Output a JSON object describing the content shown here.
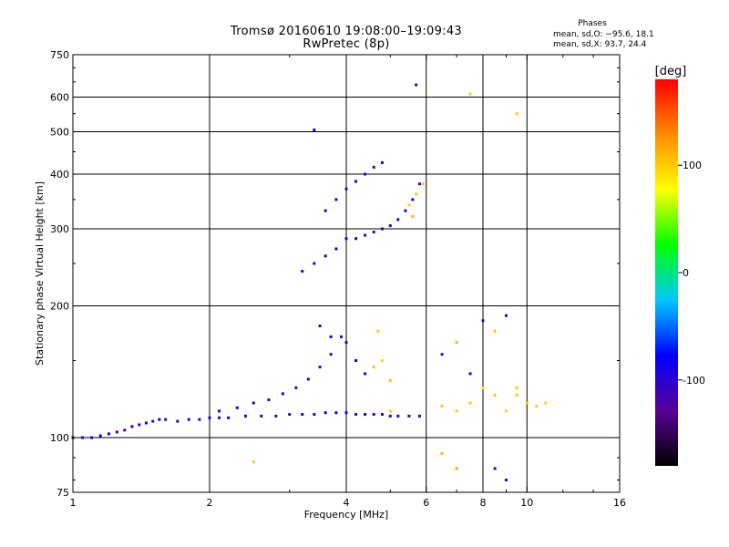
{
  "chart_data": {
    "type": "scatter",
    "title": "Tromsø 20160610 19:08:00–19:09:43",
    "subtitle": "RwPretec (8p)",
    "xlabel": "Frequency [MHz]",
    "ylabel": "Stationary phase Virtual Height [km]",
    "x_scale": "log",
    "y_scale": "log",
    "xlim": [
      1,
      16
    ],
    "ylim": [
      75,
      750
    ],
    "x_ticks": [
      1,
      2,
      4,
      6,
      8,
      10,
      16
    ],
    "y_ticks": [
      75,
      100,
      200,
      300,
      400,
      500,
      600,
      750
    ],
    "grid": true,
    "colorbar": {
      "label": "[deg]",
      "range": [
        -180,
        180
      ],
      "ticks": [
        -100,
        0,
        100
      ],
      "colormap": [
        "#000000",
        "#5a0096",
        "#0000ff",
        "#00c8ff",
        "#00ff00",
        "#ffff00",
        "#ff8c00",
        "#ff0000"
      ]
    },
    "stats": {
      "heading": "Phases",
      "o_line": "mean, sd,O: −95.6, 18.1",
      "x_line": "mean, sd,X:  93.7, 24.4"
    },
    "series": [
      {
        "values": [
          [
            1.0,
            100,
            -95
          ],
          [
            1.05,
            100,
            -100
          ],
          [
            1.1,
            100,
            -90
          ],
          [
            1.15,
            101,
            -100
          ],
          [
            1.2,
            102,
            -95
          ],
          [
            1.25,
            103,
            -100
          ],
          [
            1.3,
            104,
            -110
          ],
          [
            1.35,
            106,
            -95
          ],
          [
            1.4,
            107,
            -100
          ],
          [
            1.45,
            108,
            -90
          ],
          [
            1.5,
            109,
            -105
          ],
          [
            1.55,
            110,
            -95
          ],
          [
            1.6,
            110,
            -100
          ],
          [
            1.7,
            109,
            -95
          ],
          [
            1.8,
            110,
            -100
          ],
          [
            1.9,
            110,
            -105
          ],
          [
            2.0,
            111,
            -95
          ],
          [
            2.1,
            111,
            -100
          ],
          [
            2.2,
            111,
            -90
          ],
          [
            2.4,
            112,
            -100
          ],
          [
            2.6,
            112,
            -95
          ],
          [
            2.8,
            112,
            -100
          ],
          [
            3.0,
            113,
            -105
          ],
          [
            3.2,
            113,
            -95
          ],
          [
            3.4,
            113,
            -100
          ],
          [
            3.6,
            114,
            -95
          ],
          [
            3.8,
            114,
            -100
          ],
          [
            4.0,
            114,
            -90
          ],
          [
            4.2,
            113,
            -100
          ],
          [
            4.4,
            113,
            -95
          ],
          [
            4.6,
            113,
            -100
          ],
          [
            4.8,
            113,
            -105
          ],
          [
            5.0,
            112,
            -95
          ],
          [
            5.2,
            112,
            -100
          ],
          [
            5.5,
            112,
            -95
          ],
          [
            5.8,
            112,
            -100
          ],
          [
            2.1,
            115,
            -100
          ],
          [
            2.3,
            117,
            -95
          ],
          [
            2.5,
            120,
            -100
          ],
          [
            2.7,
            122,
            -90
          ],
          [
            2.9,
            126,
            -100
          ],
          [
            3.1,
            130,
            -95
          ],
          [
            3.3,
            136,
            -100
          ],
          [
            3.5,
            145,
            -95
          ],
          [
            3.7,
            155,
            -100
          ],
          [
            3.9,
            170,
            -105
          ],
          [
            3.2,
            240,
            -100
          ],
          [
            3.4,
            250,
            -95
          ],
          [
            3.6,
            260,
            -100
          ],
          [
            3.8,
            270,
            -90
          ],
          [
            4.0,
            285,
            -100
          ],
          [
            4.2,
            285,
            -95
          ],
          [
            4.4,
            290,
            -100
          ],
          [
            4.6,
            295,
            -105
          ],
          [
            4.8,
            300,
            -95
          ],
          [
            5.0,
            305,
            -100
          ],
          [
            5.2,
            315,
            -95
          ],
          [
            5.4,
            330,
            -100
          ],
          [
            5.6,
            350,
            -90
          ],
          [
            5.8,
            380,
            -100
          ],
          [
            3.6,
            330,
            -100
          ],
          [
            3.8,
            350,
            -95
          ],
          [
            4.0,
            370,
            -100
          ],
          [
            4.2,
            385,
            -90
          ],
          [
            4.4,
            400,
            -100
          ],
          [
            4.6,
            415,
            -95
          ],
          [
            4.8,
            425,
            -100
          ],
          [
            3.4,
            505,
            -100
          ],
          [
            3.5,
            180,
            -100
          ],
          [
            3.7,
            170,
            -95
          ],
          [
            4.0,
            165,
            -100
          ],
          [
            4.2,
            150,
            -90
          ],
          [
            4.4,
            140,
            -100
          ],
          [
            4.6,
            145,
            100
          ],
          [
            4.8,
            150,
            95
          ],
          [
            5.0,
            135,
            105
          ],
          [
            4.7,
            175,
            100
          ],
          [
            5.0,
            115,
            100
          ],
          [
            5.5,
            340,
            95
          ],
          [
            5.7,
            360,
            100
          ],
          [
            5.9,
            380,
            105
          ],
          [
            5.6,
            320,
            110
          ],
          [
            6.5,
            118,
            100
          ],
          [
            7.0,
            115,
            95
          ],
          [
            7.5,
            120,
            100
          ],
          [
            8.0,
            130,
            90
          ],
          [
            8.5,
            125,
            100
          ],
          [
            9.0,
            115,
            95
          ],
          [
            9.5,
            125,
            100
          ],
          [
            10.0,
            120,
            105
          ],
          [
            10.5,
            118,
            100
          ],
          [
            11.0,
            120,
            95
          ],
          [
            6.5,
            155,
            -110
          ],
          [
            7.0,
            165,
            110
          ],
          [
            7.5,
            140,
            -100
          ],
          [
            8.0,
            185,
            -95
          ],
          [
            8.5,
            175,
            100
          ],
          [
            9.0,
            190,
            -100
          ],
          [
            9.5,
            130,
            100
          ],
          [
            5.7,
            640,
            -100
          ],
          [
            7.5,
            610,
            60
          ],
          [
            9.5,
            550,
            100
          ],
          [
            6.5,
            92,
            110
          ],
          [
            7.0,
            85,
            120
          ],
          [
            8.5,
            85,
            -100
          ],
          [
            2.5,
            88,
            100
          ],
          [
            9.0,
            80,
            -100
          ]
        ]
      }
    ]
  }
}
